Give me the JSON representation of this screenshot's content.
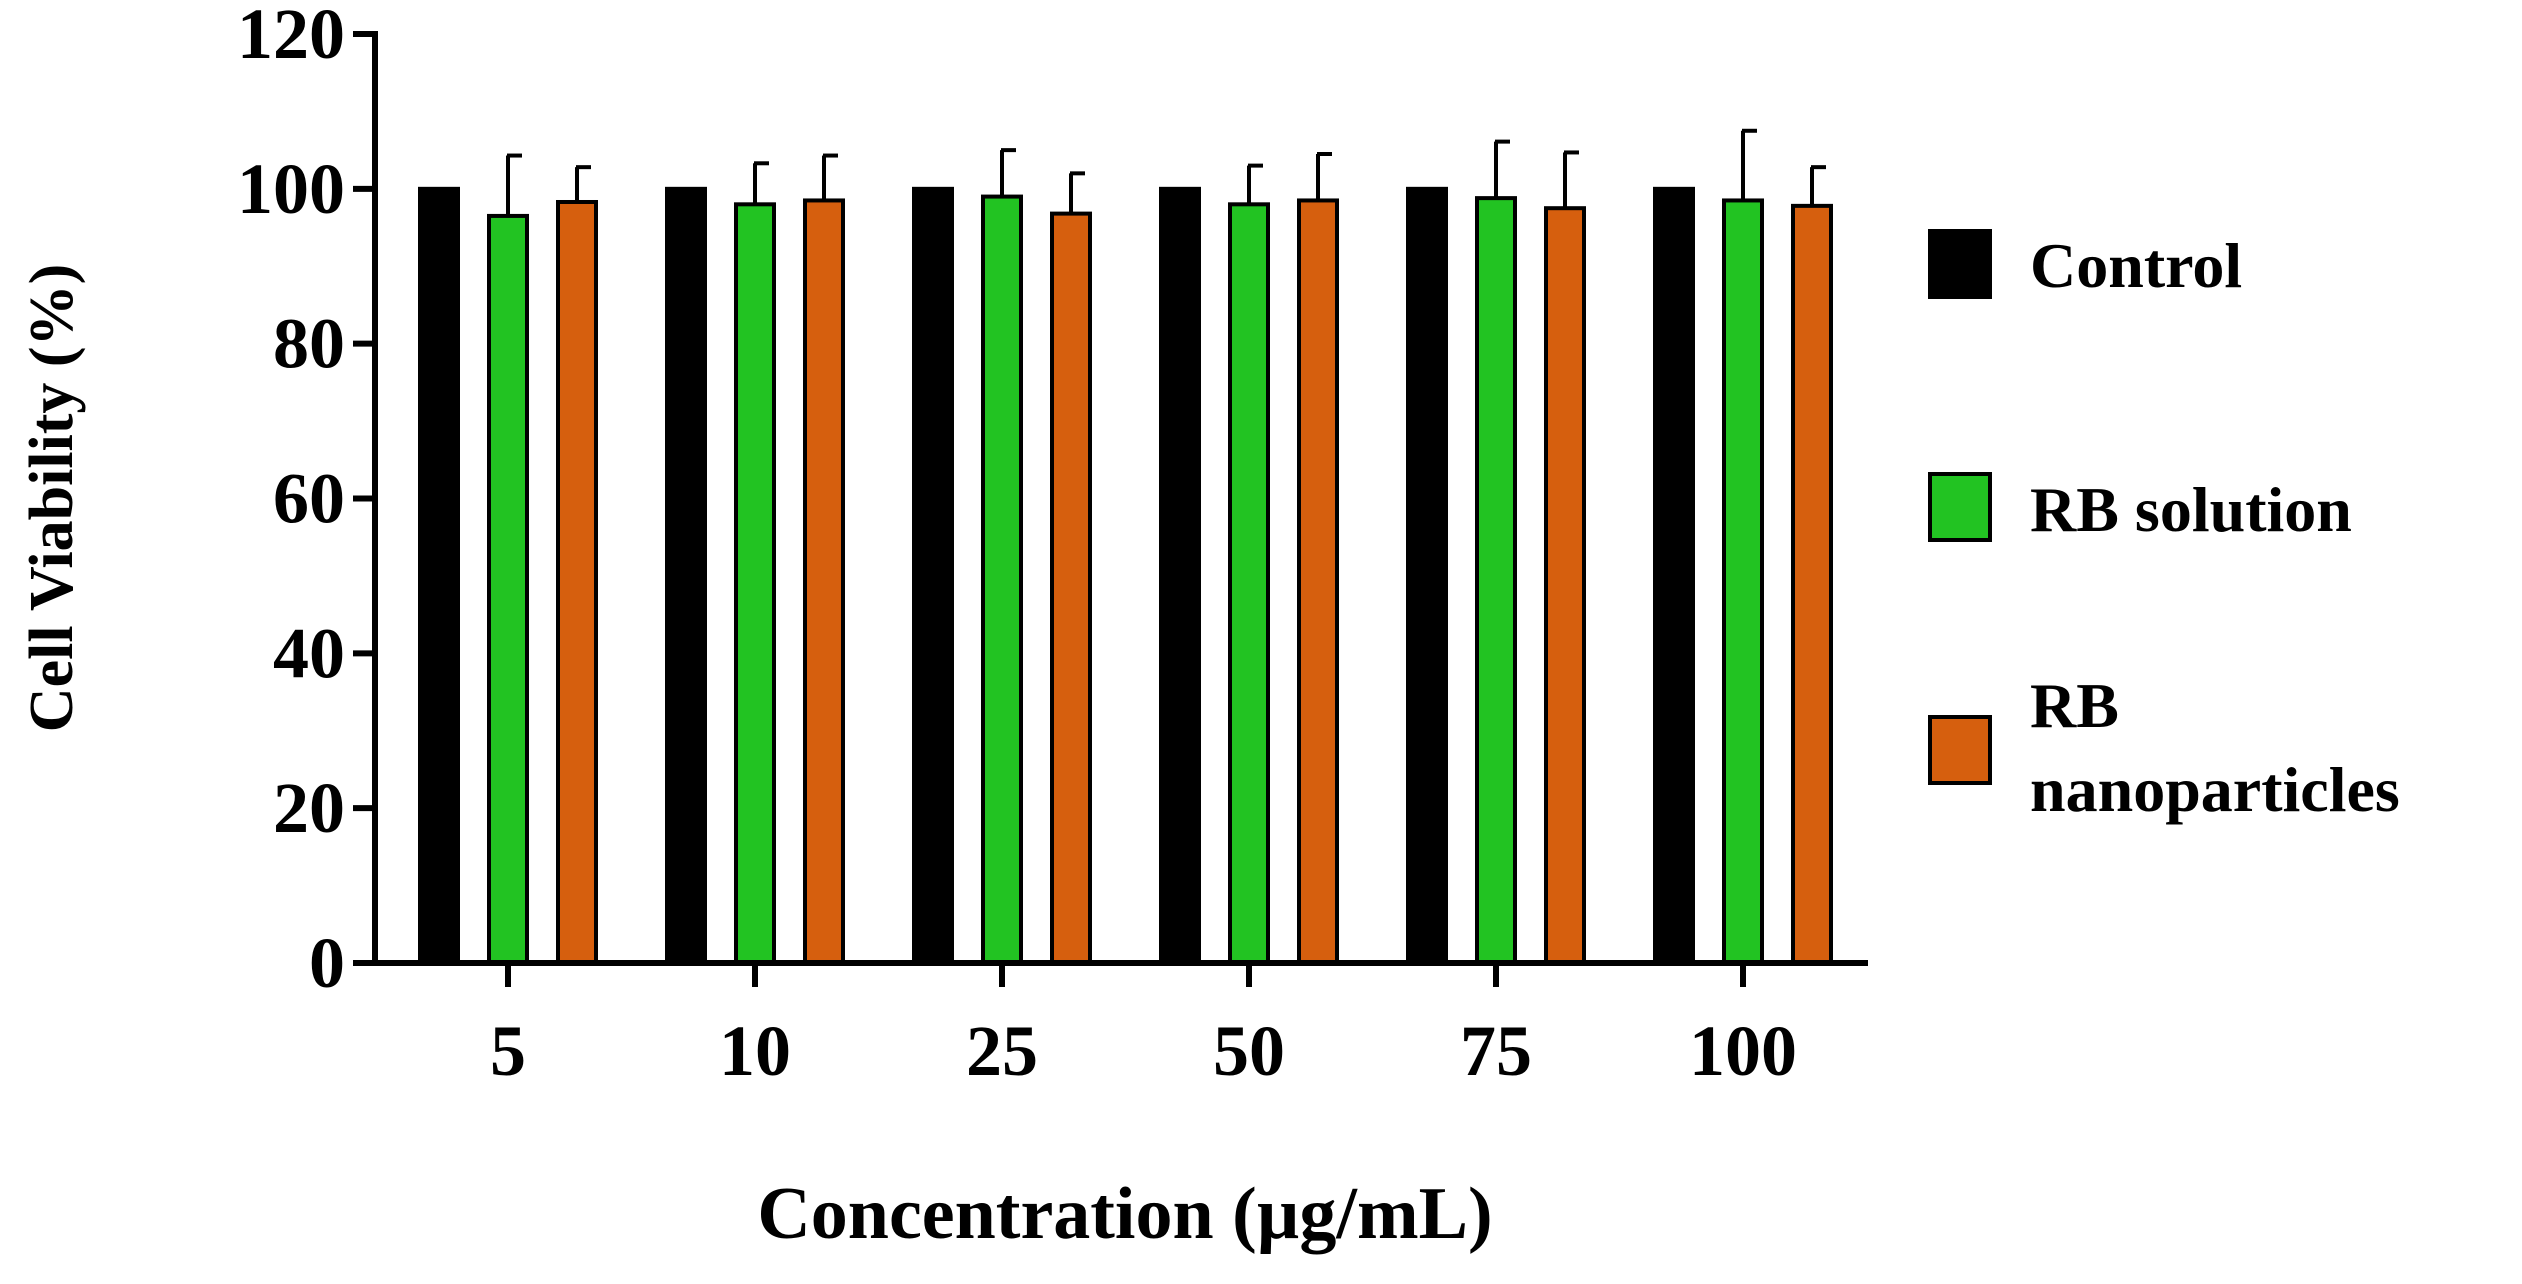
{
  "chart_data": {
    "type": "bar",
    "title": "",
    "xlabel": "Concentration (µg/mL)",
    "ylabel": "Cell Viability (%)",
    "ylim": [
      0,
      120
    ],
    "yticks": [
      0,
      20,
      40,
      60,
      80,
      100,
      120
    ],
    "categories": [
      "5",
      "10",
      "25",
      "50",
      "75",
      "100"
    ],
    "series": [
      {
        "name": "Control",
        "color": "#000000",
        "values": [
          100,
          100,
          100,
          100,
          100,
          100
        ],
        "errors": [
          0,
          0,
          0,
          0,
          0,
          0
        ]
      },
      {
        "name": "RB solution",
        "color": "#22c322",
        "values": [
          96.5,
          98.0,
          99.0,
          98.0,
          98.8,
          98.5
        ],
        "errors": [
          7.8,
          5.3,
          6.0,
          5.0,
          7.3,
          9.0
        ]
      },
      {
        "name": "RB nanoparticles",
        "legend_lines": [
          "RB",
          "nanoparticles"
        ],
        "color": "#d65f0e",
        "values": [
          98.3,
          98.5,
          96.8,
          98.5,
          97.5,
          97.8
        ],
        "errors": [
          4.5,
          5.8,
          5.2,
          6.0,
          7.2,
          5.0
        ]
      }
    ],
    "legend_position": "right",
    "grid": false
  }
}
